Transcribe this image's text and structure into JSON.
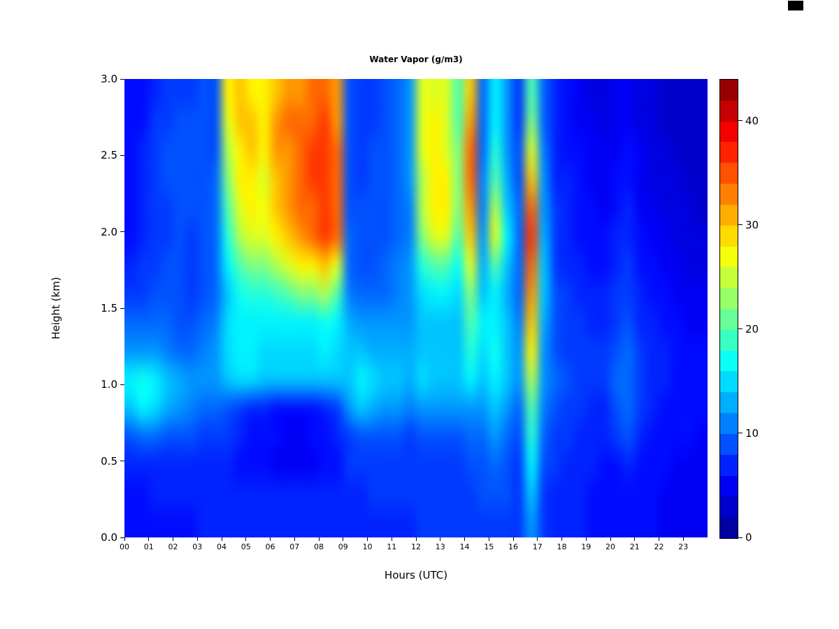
{
  "title": "Water Vapor (g/m3)",
  "xlabel": "Hours (UTC)",
  "ylabel": "Height (km)",
  "x_ticks": [
    "00",
    "01",
    "02",
    "03",
    "04",
    "05",
    "06",
    "07",
    "08",
    "09",
    "10",
    "11",
    "12",
    "13",
    "14",
    "15",
    "16",
    "17",
    "18",
    "19",
    "20",
    "21",
    "22",
    "23"
  ],
  "y_ticks": [
    "0.0",
    "0.5",
    "1.0",
    "1.5",
    "2.0",
    "2.5",
    "3.0"
  ],
  "colorbar": {
    "min": 0,
    "max": 44,
    "levels": 22,
    "ticks": [
      0,
      10,
      20,
      30,
      40
    ]
  },
  "chart_data": {
    "type": "heatmap",
    "title": "Water Vapor (g/m3)",
    "xlabel": "Hours (UTC)",
    "ylabel": "Height (km)",
    "x_range": [
      0,
      24
    ],
    "y_range": [
      0,
      3
    ],
    "vmin": 0,
    "vmax": 44,
    "x": [
      0,
      0.5,
      1,
      1.5,
      2,
      2.5,
      3,
      3.5,
      4,
      4.5,
      5,
      5.5,
      6,
      6.5,
      7,
      7.5,
      8,
      8.5,
      9,
      9.5,
      10,
      10.5,
      11,
      11.5,
      12,
      12.5,
      13,
      13.5,
      14,
      14.5,
      15,
      15.5,
      16,
      16.5,
      17,
      17.5,
      18,
      18.5,
      19,
      19.5,
      20,
      20.5,
      21,
      21.5,
      22,
      22.5,
      23,
      23.5
    ],
    "y": [
      0,
      0.2,
      0.4,
      0.6,
      0.8,
      1,
      1.2,
      1.4,
      1.6,
      1.8,
      2,
      2.2,
      2.4,
      2.6,
      2.8,
      3
    ],
    "values": [
      [
        6,
        6,
        6,
        6,
        6,
        6,
        7,
        7,
        7,
        7,
        7,
        7,
        7,
        7,
        7,
        7,
        7,
        7,
        7,
        7,
        7,
        7,
        7,
        7,
        8,
        8,
        8,
        8,
        8,
        8,
        8,
        8,
        8,
        12,
        8,
        7,
        7,
        7,
        6,
        6,
        6,
        6,
        6,
        6,
        5,
        5,
        5,
        5
      ],
      [
        6,
        6,
        7,
        7,
        7,
        7,
        7,
        7,
        7,
        7,
        7,
        7,
        7,
        7,
        7,
        7,
        7,
        7,
        7,
        7,
        8,
        8,
        8,
        8,
        8,
        8,
        8,
        8,
        8,
        9,
        9,
        9,
        8,
        14,
        8,
        7,
        7,
        7,
        6,
        6,
        6,
        6,
        6,
        6,
        5,
        5,
        5,
        5
      ],
      [
        7,
        7,
        7,
        7,
        7,
        7,
        7,
        7,
        7,
        6,
        6,
        6,
        5,
        5,
        5,
        5,
        6,
        6,
        8,
        8,
        8,
        8,
        8,
        8,
        8,
        8,
        8,
        8,
        9,
        9,
        10,
        9,
        8,
        16,
        9,
        8,
        7,
        7,
        7,
        6,
        6,
        7,
        6,
        6,
        6,
        5,
        5,
        5
      ],
      [
        9,
        10,
        10,
        9,
        9,
        9,
        8,
        8,
        8,
        7,
        6,
        6,
        6,
        5,
        5,
        6,
        6,
        7,
        8,
        9,
        9,
        9,
        9,
        8,
        9,
        9,
        9,
        9,
        10,
        10,
        12,
        10,
        9,
        18,
        10,
        8,
        8,
        7,
        7,
        7,
        8,
        9,
        7,
        6,
        6,
        6,
        6,
        5
      ],
      [
        14,
        16,
        15,
        13,
        12,
        11,
        10,
        10,
        9,
        8,
        7,
        7,
        6,
        6,
        6,
        6,
        7,
        8,
        12,
        14,
        13,
        12,
        12,
        11,
        12,
        12,
        12,
        12,
        12,
        12,
        14,
        12,
        10,
        20,
        11,
        9,
        8,
        8,
        7,
        7,
        9,
        10,
        8,
        7,
        6,
        6,
        6,
        6
      ],
      [
        16,
        17,
        16,
        14,
        13,
        12,
        12,
        12,
        14,
        15,
        15,
        14,
        14,
        14,
        14,
        14,
        14,
        14,
        14,
        16,
        15,
        14,
        14,
        13,
        15,
        14,
        14,
        14,
        16,
        14,
        16,
        14,
        12,
        24,
        12,
        10,
        9,
        8,
        8,
        8,
        10,
        10,
        8,
        7,
        7,
        6,
        6,
        6
      ],
      [
        12,
        12,
        12,
        11,
        10,
        10,
        11,
        12,
        15,
        16,
        16,
        15,
        15,
        15,
        15,
        15,
        16,
        15,
        14,
        14,
        13,
        13,
        13,
        13,
        14,
        14,
        14,
        14,
        18,
        15,
        17,
        14,
        12,
        28,
        12,
        9,
        8,
        8,
        8,
        8,
        9,
        10,
        8,
        7,
        7,
        6,
        6,
        6
      ],
      [
        10,
        10,
        10,
        10,
        9,
        9,
        10,
        11,
        15,
        16,
        16,
        16,
        16,
        16,
        16,
        16,
        17,
        16,
        13,
        12,
        12,
        12,
        12,
        12,
        14,
        14,
        14,
        14,
        20,
        16,
        16,
        14,
        11,
        30,
        13,
        9,
        8,
        8,
        7,
        7,
        8,
        9,
        7,
        7,
        6,
        6,
        5,
        5
      ],
      [
        8,
        8,
        9,
        9,
        9,
        8,
        9,
        10,
        14,
        17,
        18,
        18,
        19,
        20,
        22,
        22,
        24,
        20,
        11,
        10,
        10,
        10,
        11,
        12,
        15,
        16,
        16,
        15,
        22,
        14,
        16,
        13,
        10,
        32,
        14,
        9,
        8,
        7,
        7,
        7,
        8,
        8,
        7,
        6,
        6,
        5,
        5,
        5
      ],
      [
        7,
        8,
        8,
        9,
        9,
        8,
        9,
        10,
        16,
        20,
        22,
        22,
        24,
        26,
        28,
        28,
        30,
        26,
        10,
        9,
        9,
        10,
        11,
        12,
        18,
        20,
        20,
        17,
        26,
        13,
        20,
        14,
        10,
        34,
        14,
        8,
        7,
        7,
        6,
        6,
        7,
        8,
        6,
        6,
        5,
        5,
        4,
        4
      ],
      [
        6,
        7,
        8,
        8,
        9,
        8,
        9,
        10,
        18,
        24,
        26,
        26,
        28,
        30,
        32,
        34,
        36,
        34,
        10,
        9,
        9,
        9,
        10,
        11,
        22,
        26,
        26,
        20,
        30,
        12,
        26,
        16,
        10,
        36,
        13,
        8,
        7,
        6,
        6,
        6,
        7,
        7,
        6,
        5,
        5,
        4,
        4,
        4
      ],
      [
        6,
        7,
        8,
        8,
        9,
        9,
        9,
        10,
        20,
        26,
        28,
        27,
        30,
        32,
        34,
        34,
        36,
        34,
        9,
        9,
        9,
        9,
        10,
        11,
        24,
        28,
        28,
        22,
        32,
        11,
        24,
        14,
        10,
        34,
        12,
        8,
        7,
        6,
        6,
        5,
        6,
        7,
        5,
        5,
        4,
        4,
        4,
        3
      ],
      [
        6,
        7,
        8,
        9,
        9,
        9,
        9,
        10,
        22,
        28,
        28,
        26,
        30,
        32,
        34,
        36,
        36,
        34,
        9,
        8,
        9,
        9,
        10,
        12,
        24,
        28,
        28,
        22,
        34,
        11,
        20,
        13,
        9,
        30,
        12,
        7,
        7,
        6,
        5,
        5,
        6,
        6,
        5,
        4,
        4,
        4,
        3,
        3
      ],
      [
        6,
        7,
        8,
        9,
        9,
        9,
        9,
        9,
        24,
        28,
        30,
        28,
        32,
        32,
        34,
        36,
        36,
        34,
        9,
        8,
        9,
        9,
        10,
        12,
        26,
        28,
        26,
        22,
        34,
        10,
        18,
        12,
        9,
        26,
        11,
        7,
        6,
        6,
        5,
        5,
        5,
        6,
        5,
        4,
        4,
        3,
        3,
        3
      ],
      [
        6,
        6,
        8,
        8,
        9,
        9,
        9,
        9,
        26,
        30,
        30,
        28,
        32,
        34,
        34,
        34,
        36,
        32,
        9,
        8,
        8,
        9,
        10,
        12,
        26,
        28,
        26,
        20,
        32,
        10,
        16,
        12,
        8,
        22,
        10,
        7,
        6,
        5,
        5,
        4,
        5,
        5,
        4,
        4,
        3,
        3,
        3,
        3
      ],
      [
        6,
        6,
        7,
        8,
        8,
        8,
        9,
        9,
        28,
        30,
        28,
        28,
        30,
        32,
        32,
        34,
        34,
        32,
        9,
        8,
        8,
        9,
        10,
        12,
        26,
        26,
        26,
        20,
        30,
        10,
        16,
        12,
        8,
        20,
        10,
        7,
        6,
        5,
        4,
        4,
        5,
        5,
        4,
        4,
        3,
        3,
        3,
        3
      ]
    ],
    "colormap": {
      "name": "jet",
      "stops": [
        [
          0.0,
          "#00008F"
        ],
        [
          0.125,
          "#0000FF"
        ],
        [
          0.375,
          "#00FFFF"
        ],
        [
          0.625,
          "#FFFF00"
        ],
        [
          0.875,
          "#FF0000"
        ],
        [
          1.0,
          "#800000"
        ]
      ]
    },
    "legend_position": "right",
    "grid": false
  }
}
